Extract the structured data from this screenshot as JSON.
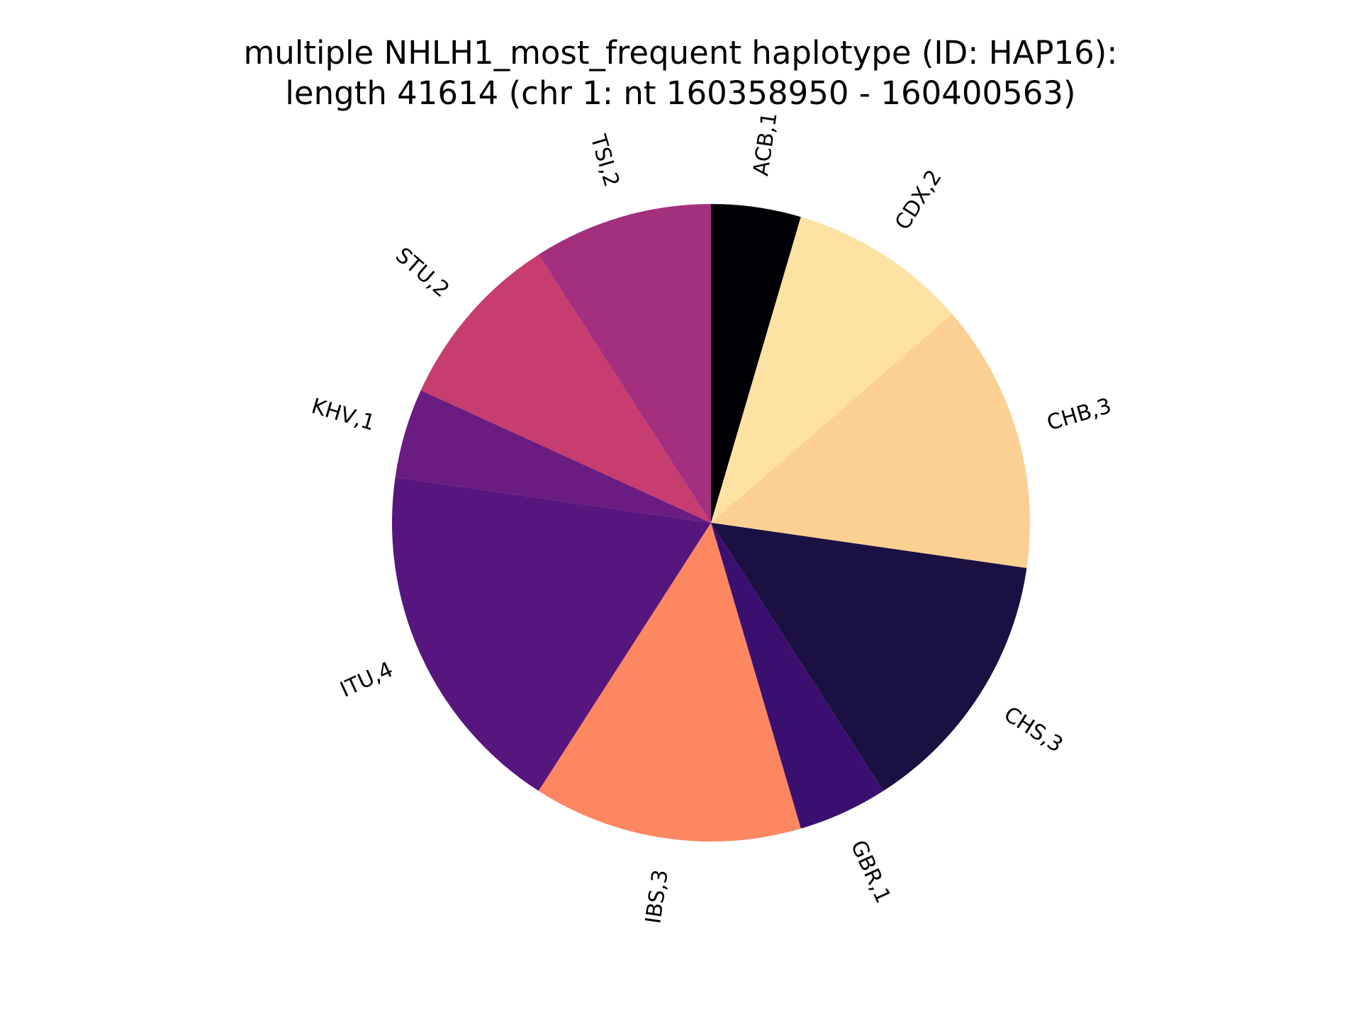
{
  "chart_data": {
    "type": "pie",
    "title": [
      "multiple NHLH1_most_frequent haplotype (ID: HAP16):",
      "length 41614 (chr 1: nt 160358950 - 160400563)"
    ],
    "start_angle_deg": 90,
    "direction": "clockwise",
    "slices": [
      {
        "category": "ACB",
        "value": 1,
        "label": "ACB,1",
        "color": "#000004"
      },
      {
        "category": "CDX",
        "value": 2,
        "label": "CDX,2",
        "color": "#fde2a3"
      },
      {
        "category": "CHB",
        "value": 3,
        "label": "CHB,3",
        "color": "#fcd093"
      },
      {
        "category": "CHS",
        "value": 3,
        "label": "CHS,3",
        "color": "#1b1042"
      },
      {
        "category": "GBR",
        "value": 1,
        "label": "GBR,1",
        "color": "#3b0f70"
      },
      {
        "category": "IBS",
        "value": 3,
        "label": "IBS,3",
        "color": "#fc8761"
      },
      {
        "category": "ITU",
        "value": 4,
        "label": "ITU,4",
        "color": "#57157e"
      },
      {
        "category": "KHV",
        "value": 1,
        "label": "KHV,1",
        "color": "#6a1c81"
      },
      {
        "category": "STU",
        "value": 2,
        "label": "STU,2",
        "color": "#c73d6f"
      },
      {
        "category": "TSI",
        "value": 2,
        "label": "TSI,2",
        "color": "#a3307e"
      }
    ]
  }
}
